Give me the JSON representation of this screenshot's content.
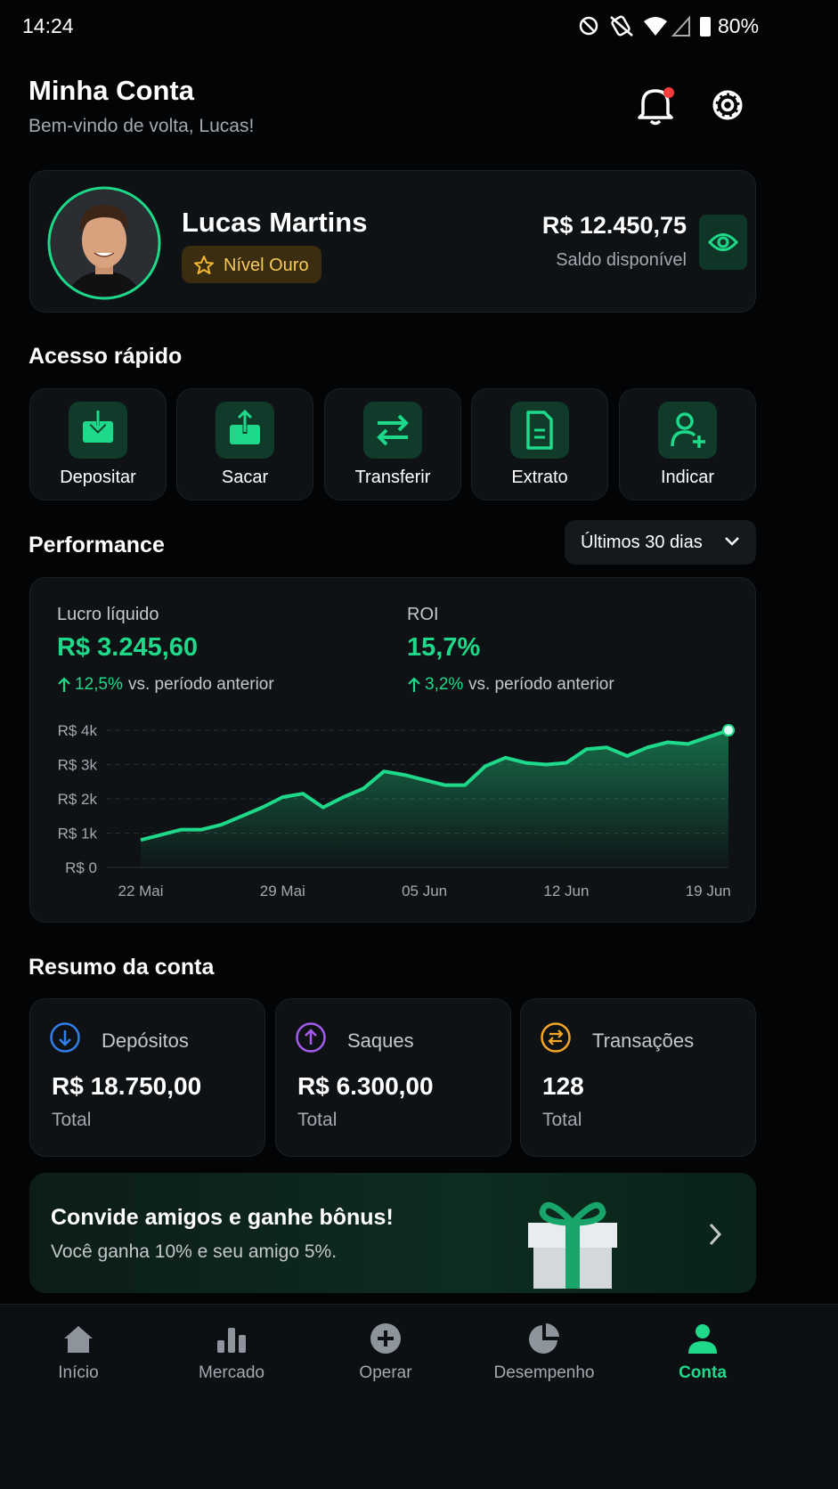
{
  "status_bar": {
    "time": "14:24",
    "battery": "80%"
  },
  "header": {
    "title": "Minha Conta",
    "subtitle": "Bem-vindo de volta, Lucas!"
  },
  "profile": {
    "name": "Lucas Martins",
    "level": "Nível Ouro",
    "balance": "R$ 12.450,75",
    "balance_label": "Saldo disponível"
  },
  "quick_access": {
    "title": "Acesso rápido",
    "items": [
      "Depositar",
      "Sacar",
      "Transferir",
      "Extrato",
      "Indicar"
    ]
  },
  "performance": {
    "title": "Performance",
    "period": "Últimos 30 dias",
    "metrics": [
      {
        "label": "Lucro líquido",
        "value": "R$ 3.245,60",
        "change": "12,5%",
        "change_label": "vs. período anterior"
      },
      {
        "label": "ROI",
        "value": "15,7%",
        "change": "3,2%",
        "change_label": "vs. período anterior"
      }
    ]
  },
  "chart_data": {
    "type": "area",
    "categories": [
      "22 Mai",
      null,
      null,
      null,
      null,
      null,
      null,
      "29 Mai",
      null,
      null,
      null,
      null,
      null,
      null,
      "05 Jun",
      null,
      null,
      null,
      null,
      null,
      null,
      "12 Jun",
      null,
      null,
      null,
      null,
      null,
      null,
      "19 Jun",
      null
    ],
    "values": [
      800,
      950,
      1100,
      1100,
      1250,
      1500,
      1750,
      2050,
      2150,
      1750,
      2050,
      2300,
      2800,
      2700,
      2550,
      2400,
      2400,
      2950,
      3200,
      3050,
      3000,
      3050,
      3450,
      3500,
      3250,
      3500,
      3650,
      3600,
      3800,
      4000
    ],
    "color": "#1fd98a",
    "ylim": [
      0,
      4000
    ],
    "yticks": [
      {
        "value": 0,
        "label": "R$ 0"
      },
      {
        "value": 1000,
        "label": "R$ 1k"
      },
      {
        "value": 2000,
        "label": "R$ 2k"
      },
      {
        "value": 3000,
        "label": "R$ 3k"
      },
      {
        "value": 4000,
        "label": "R$ 4k"
      }
    ],
    "grid": true
  },
  "summary": {
    "title": "Resumo da conta",
    "cards": [
      {
        "label": "Depósitos",
        "value": "R$ 18.750,00",
        "note": "Total"
      },
      {
        "label": "Saques",
        "value": "R$ 6.300,00",
        "note": "Total"
      },
      {
        "label": "Transações",
        "value": "128",
        "note": "Total"
      }
    ]
  },
  "promo": {
    "title": "Convide amigos e ganhe bônus!",
    "text": "Você ganha 10% e seu amigo 5%."
  },
  "nav": {
    "items": [
      "Início",
      "Mercado",
      "Operar",
      "Desempenho",
      "Conta"
    ]
  }
}
